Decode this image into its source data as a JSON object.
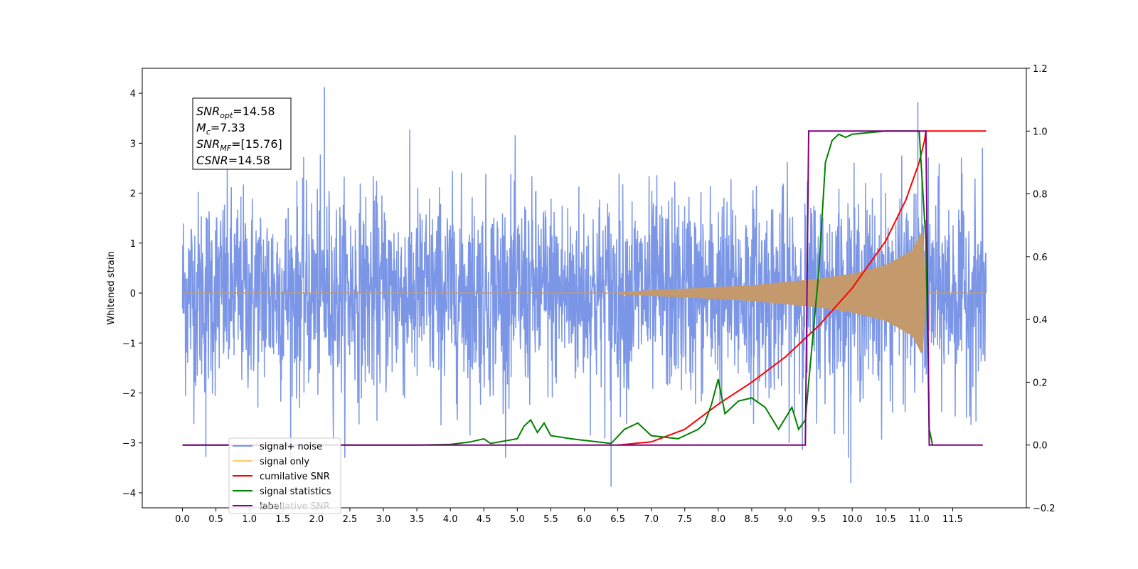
{
  "chart_data": {
    "type": "line",
    "xlabel": "",
    "ylabel": "Whitened strain",
    "xlim": [
      -0.6,
      12.6
    ],
    "ylim": [
      -4.3,
      4.5
    ],
    "y2lim": [
      -0.2,
      1.2
    ],
    "x_ticks": [
      "0.0",
      "0.5",
      "1.0",
      "1.5",
      "2.0",
      "2.5",
      "3.0",
      "3.5",
      "4.0",
      "4.5",
      "5.0",
      "5.5",
      "6.0",
      "6.5",
      "7.0",
      "7.5",
      "8.0",
      "8.5",
      "9.0",
      "9.5",
      "10.0",
      "10.5",
      "11.0",
      "11.5"
    ],
    "y_ticks": [
      "4",
      "3",
      "2",
      "1",
      "0",
      "−1",
      "−2",
      "−3",
      "−4"
    ],
    "y2_ticks": [
      "1.2",
      "1.0",
      "0.8",
      "0.6",
      "0.4",
      "0.2",
      "0.0",
      "−0.2"
    ],
    "annotation": [
      {
        "sym": "SNR",
        "sub": "opt",
        "rest": "=14.58"
      },
      {
        "sym": "M",
        "sub": "c",
        "rest": "=7.33"
      },
      {
        "sym": "SNR",
        "sub": "MF",
        "rest": "=[15.76]"
      },
      {
        "sym": "CSNR",
        "sub": "",
        "rest": "=14.58"
      }
    ],
    "legend": {
      "position": "lower-left",
      "entries": [
        {
          "label": "signal+ noise",
          "color": "#7b96e6"
        },
        {
          "label": "signal only",
          "color": "#ffc864"
        },
        {
          "label": "cumilative SNR",
          "color": "#ff0000"
        },
        {
          "label": "signal statistics",
          "color": "#008000"
        },
        {
          "label": "label",
          "color": "#800080"
        }
      ],
      "ghost_text": "cumilative SNR"
    },
    "series": [
      {
        "name": "signal+ noise",
        "axis": "left",
        "color": "#7b96e6",
        "description": "noise band",
        "x_range": [
          0.0,
          12.0
        ],
        "amplitude_y": [
          -3.3,
          3.6
        ],
        "peaks": [
          [
            2.12,
            4.12
          ],
          [
            10.98,
            3.82
          ],
          [
            6.4,
            -3.88
          ],
          [
            9.98,
            -3.8
          ],
          [
            0.35,
            -3.28
          ]
        ]
      },
      {
        "name": "signal only",
        "axis": "left",
        "color": "#c49a6c",
        "description": "chirp envelope",
        "x": [
          6.5,
          7.5,
          8.5,
          9.5,
          10.0,
          10.5,
          10.9,
          11.05,
          11.1
        ],
        "envelope": [
          0.02,
          0.08,
          0.15,
          0.28,
          0.38,
          0.55,
          0.85,
          1.25,
          0.0
        ]
      },
      {
        "name": "cumilative SNR",
        "axis": "right",
        "color": "#ff0000",
        "x": [
          6.5,
          7.0,
          7.5,
          8.0,
          8.5,
          9.0,
          9.5,
          10.0,
          10.5,
          10.8,
          11.0,
          11.08,
          11.1,
          11.2,
          12.0
        ],
        "values": [
          0.0,
          0.01,
          0.05,
          0.13,
          0.2,
          0.28,
          0.38,
          0.5,
          0.65,
          0.78,
          0.9,
          0.97,
          1.0,
          1.0,
          1.0
        ]
      },
      {
        "name": "signal statistics",
        "axis": "right",
        "color": "#008000",
        "x": [
          0.0,
          3.5,
          4.0,
          4.3,
          4.5,
          4.6,
          5.0,
          5.1,
          5.2,
          5.3,
          5.4,
          5.5,
          5.8,
          6.0,
          6.4,
          6.6,
          6.8,
          7.0,
          7.4,
          7.7,
          7.8,
          7.9,
          8.0,
          8.1,
          8.3,
          8.5,
          8.7,
          8.9,
          9.1,
          9.2,
          9.3,
          9.35,
          9.5,
          9.6,
          9.7,
          9.8,
          9.9,
          10.0,
          10.5,
          11.0,
          11.1,
          11.15,
          11.2
        ],
        "values": [
          0.0,
          0.0,
          0.002,
          0.01,
          0.02,
          0.005,
          0.02,
          0.06,
          0.08,
          0.04,
          0.07,
          0.03,
          0.02,
          0.015,
          0.005,
          0.05,
          0.07,
          0.03,
          0.02,
          0.05,
          0.07,
          0.13,
          0.21,
          0.1,
          0.14,
          0.15,
          0.12,
          0.05,
          0.12,
          0.05,
          0.08,
          0.2,
          0.55,
          0.9,
          0.97,
          0.99,
          0.98,
          0.99,
          1.0,
          1.0,
          0.65,
          0.05,
          0.0
        ]
      },
      {
        "name": "label",
        "axis": "right",
        "color": "#800080",
        "x": [
          0.0,
          9.3,
          9.35,
          11.1,
          11.15,
          11.95
        ],
        "values": [
          0.0,
          0.0,
          1.0,
          1.0,
          0.0,
          0.0
        ]
      }
    ]
  }
}
